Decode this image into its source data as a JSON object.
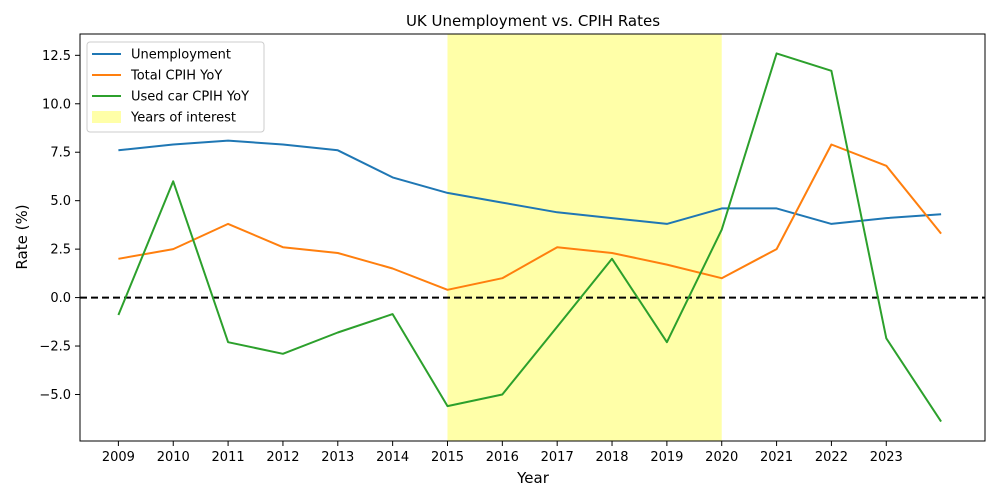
{
  "chart_data": {
    "type": "line",
    "title": "UK Unemployment vs. CPIH Rates",
    "xlabel": "Year",
    "ylabel": "Rate (%)",
    "x": [
      2009,
      2010,
      2011,
      2012,
      2013,
      2014,
      2015,
      2016,
      2017,
      2018,
      2019,
      2020,
      2021,
      2022,
      2023,
      2024
    ],
    "x_tick_labels": [
      "2009",
      "2010",
      "2011",
      "2012",
      "2013",
      "2014",
      "2015",
      "2016",
      "2017",
      "2018",
      "2019",
      "2020",
      "2021",
      "2022",
      "2023"
    ],
    "y_tick_labels": [
      "−5.0",
      "−2.5",
      "0.0",
      "2.5",
      "5.0",
      "7.5",
      "10.0",
      "12.5"
    ],
    "y_ticks": [
      -5,
      -2.5,
      0,
      2.5,
      5,
      7.5,
      10,
      12.5
    ],
    "xlim": [
      2008.3,
      2024.8
    ],
    "ylim": [
      -7.4,
      13.6
    ],
    "series": [
      {
        "name": "Unemployment",
        "color": "#1f77b4",
        "values": [
          7.6,
          7.9,
          8.1,
          7.9,
          7.6,
          6.2,
          5.4,
          4.9,
          4.4,
          4.1,
          3.8,
          4.6,
          4.6,
          3.8,
          4.1,
          4.3
        ]
      },
      {
        "name": "Total CPIH YoY",
        "color": "#ff7f0e",
        "values": [
          2.0,
          2.5,
          3.8,
          2.6,
          2.3,
          1.5,
          0.4,
          1.0,
          2.6,
          2.3,
          1.7,
          1.0,
          2.5,
          7.9,
          6.8,
          3.3
        ]
      },
      {
        "name": "Used car CPIH YoY",
        "color": "#2ca02c",
        "values": [
          -0.9,
          6.0,
          -2.3,
          -2.9,
          -1.8,
          -0.85,
          -5.6,
          -5.0,
          -1.5,
          2.0,
          -2.3,
          3.5,
          12.6,
          11.7,
          -2.1,
          -6.4
        ]
      }
    ],
    "highlight": {
      "name": "Years of interest",
      "x_start": 2015,
      "x_end": 2020,
      "color": "#ffff99"
    },
    "reference_line": {
      "y": 0,
      "style": "dashed",
      "color": "#000000"
    },
    "legend_position": "top-left",
    "grid": false
  }
}
